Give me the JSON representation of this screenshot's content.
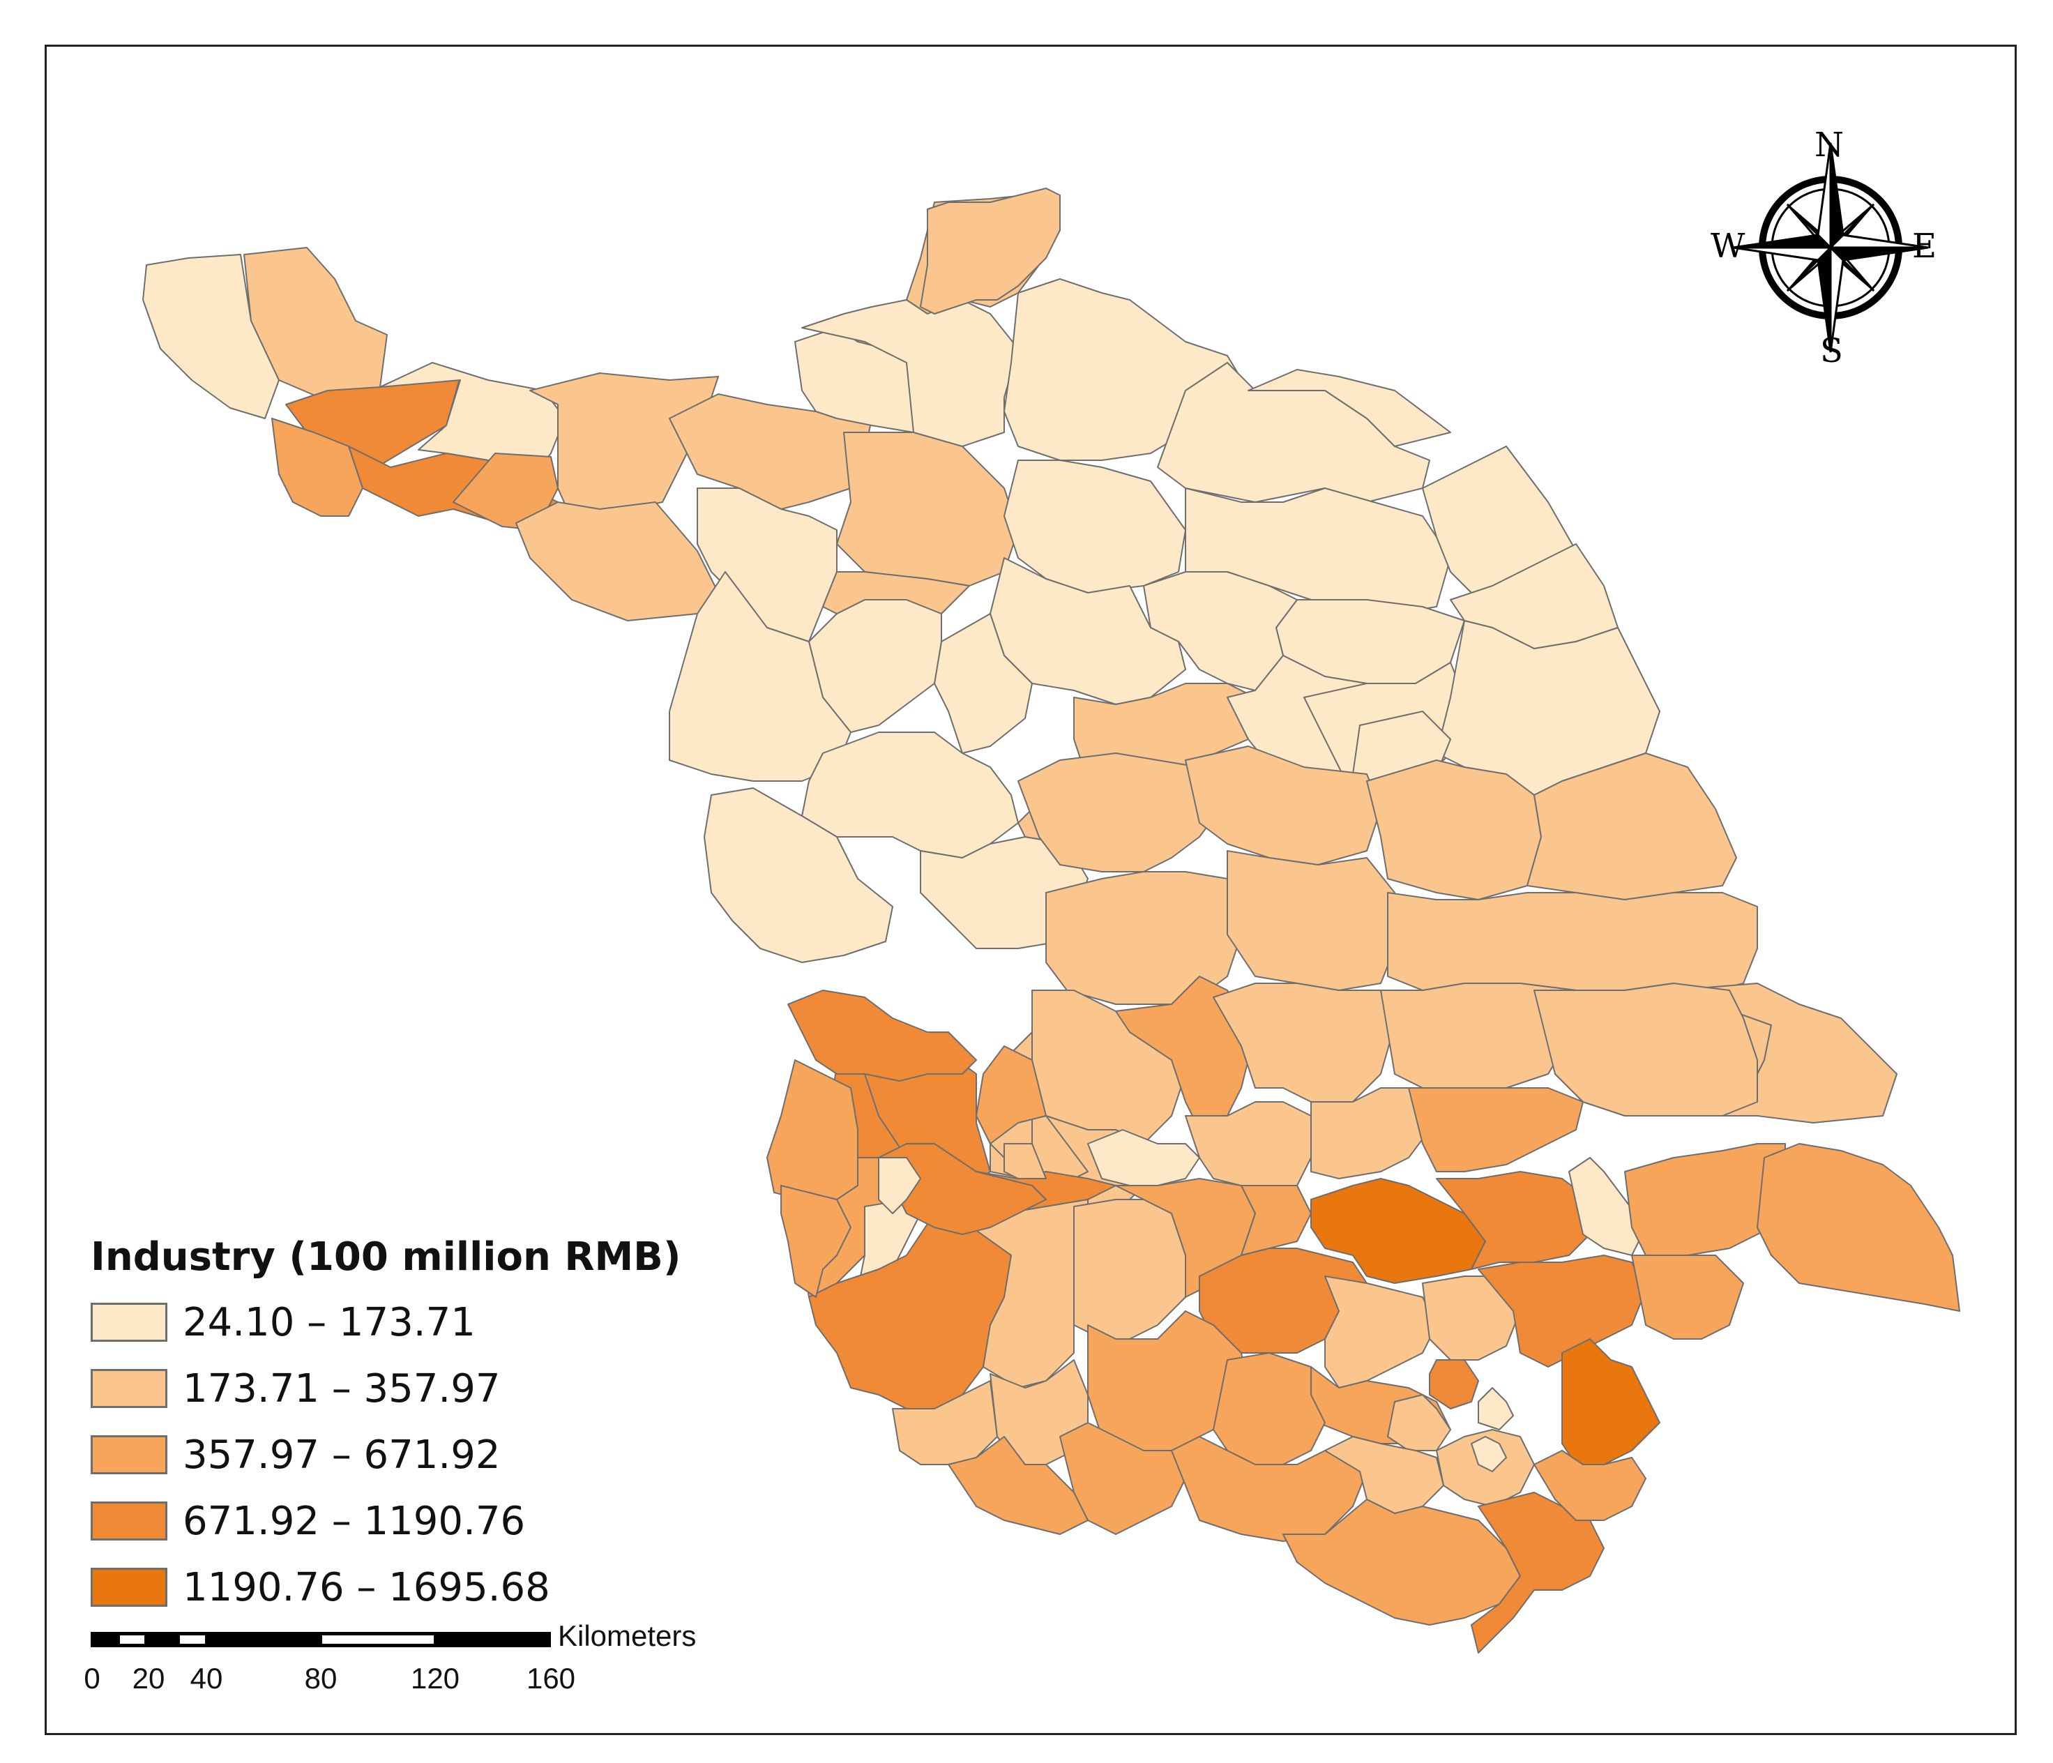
{
  "legend": {
    "title": "Industry (100 million RMB)",
    "classes": [
      {
        "label": "24.10 – 173.71",
        "color": "#fde8c8"
      },
      {
        "label": "173.71 – 357.97",
        "color": "#fbc68e"
      },
      {
        "label": "357.97 – 671.92",
        "color": "#f8a55c"
      },
      {
        "label": "671.92 – 1190.76",
        "color": "#f08a36"
      },
      {
        "label": "1190.76 – 1695.68",
        "color": "#ea760e"
      }
    ]
  },
  "scale_bar": {
    "unit": "Kilometers",
    "ticks": [
      "0",
      "20",
      "40",
      "80",
      "120",
      "160"
    ]
  },
  "north_arrow": {
    "north": "N",
    "south": "S",
    "east": "E",
    "west": "W",
    "icon": "compass-rose-icon"
  }
}
